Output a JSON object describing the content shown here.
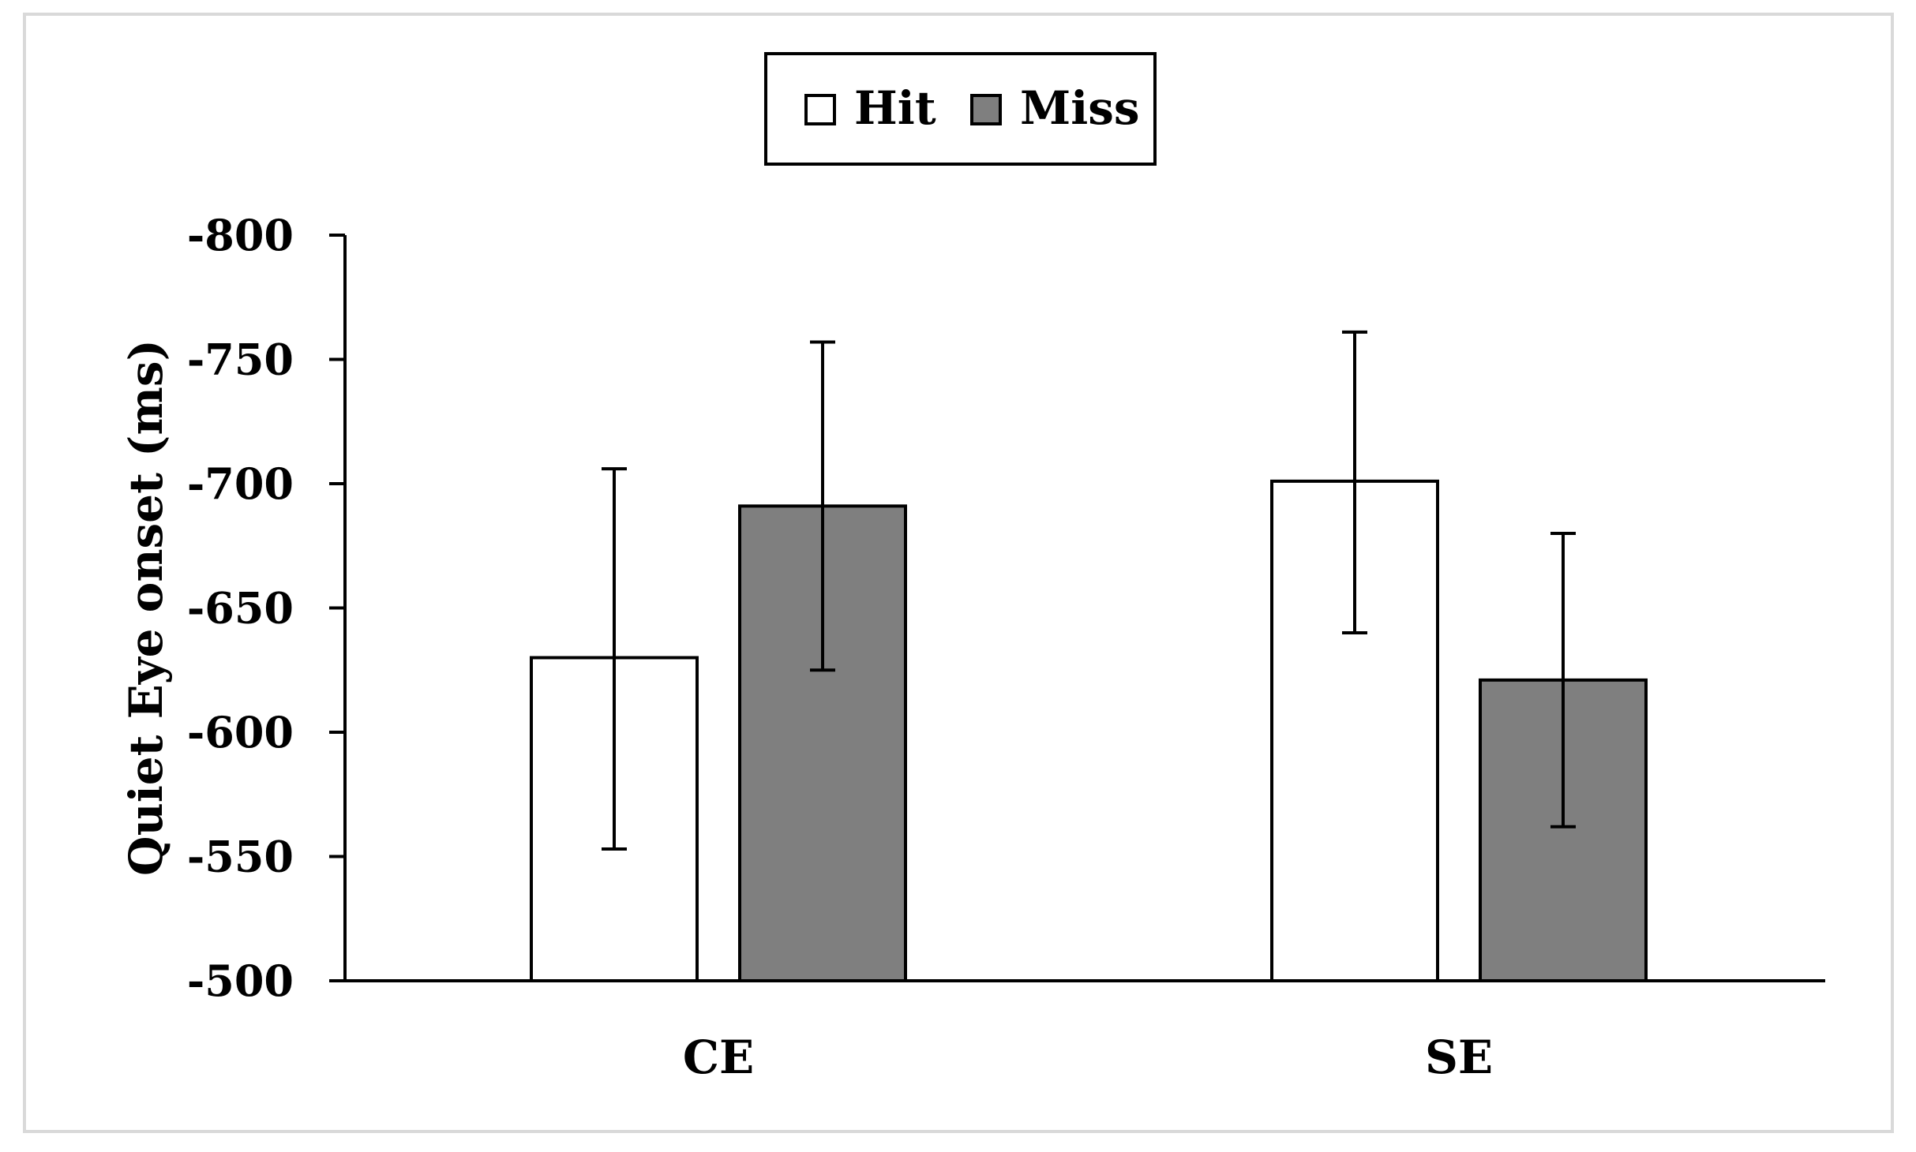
{
  "chart_data": {
    "type": "bar",
    "title": "",
    "xlabel": "",
    "ylabel": "Quiet Eye onset (ms)",
    "categories": [
      "CE",
      "SE"
    ],
    "series": [
      {
        "name": "Hit",
        "color": "#ffffff",
        "values": [
          -630,
          -701
        ],
        "error_low": [
          -553,
          -640
        ],
        "error_high": [
          -706,
          -761
        ]
      },
      {
        "name": "Miss",
        "color": "#7f7f7f",
        "values": [
          -691,
          -621
        ],
        "error_low": [
          -625,
          -562
        ],
        "error_high": [
          -757,
          -680
        ]
      }
    ],
    "ylim": [
      -500,
      -800
    ],
    "yticks": [
      -800,
      -750,
      -700,
      -650,
      -600,
      -550,
      -500
    ],
    "ytick_labels": [
      "-800",
      "-750",
      "-700",
      "-650",
      "-600",
      "-550",
      "-500"
    ],
    "grid": false,
    "legend_position": "top-center",
    "colors": {
      "hit": "#ffffff",
      "miss": "#7f7f7f",
      "axis": "#000000",
      "frame": "#d9d9d9"
    }
  }
}
